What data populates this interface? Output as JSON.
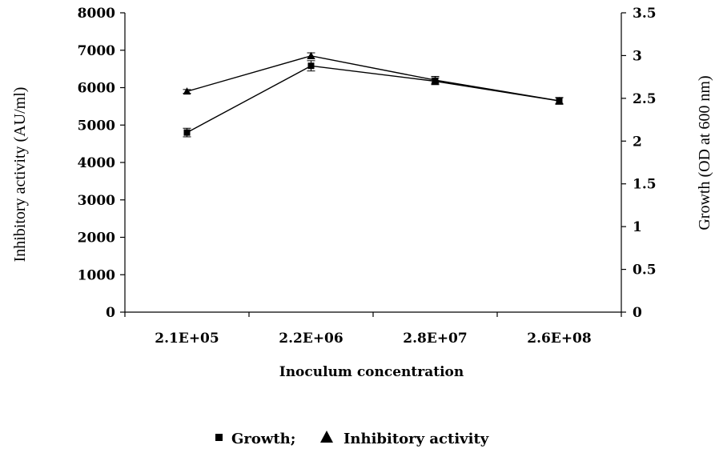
{
  "chart_data": {
    "type": "line",
    "title": "",
    "xlabel": "Inoculum concentration",
    "ylabel_left": "Inhibitory activity (AU/ml)",
    "ylabel_right": "Growth (OD at 600 nm)",
    "categories": [
      "2.1E+05",
      "2.2E+06",
      "2.8E+07",
      "2.6E+08"
    ],
    "ylim_left": [
      0,
      8000
    ],
    "ylim_right": [
      0,
      3.5
    ],
    "yticks_left": [
      "0",
      "1000",
      "2000",
      "3000",
      "4000",
      "5000",
      "6000",
      "7000",
      "8000"
    ],
    "yticks_right": [
      "0",
      "0.5",
      "1",
      "1.5",
      "2",
      "2.5",
      "3",
      "3.5"
    ],
    "grid": false,
    "legend_position": "bottom",
    "legend_text": {
      "growth": "Growth;",
      "inhibitory": "Inhibitory activity"
    },
    "series": [
      {
        "name": "Growth",
        "axis": "right",
        "marker": "square",
        "values": [
          2.1,
          2.88,
          2.7,
          2.47
        ],
        "errors": [
          0.05,
          0.06,
          0.04,
          0.04
        ]
      },
      {
        "name": "Inhibitory activity",
        "axis": "left",
        "marker": "triangle",
        "values": [
          5900,
          6850,
          6200,
          5650
        ],
        "errors": [
          50,
          80,
          100,
          80
        ]
      }
    ]
  }
}
